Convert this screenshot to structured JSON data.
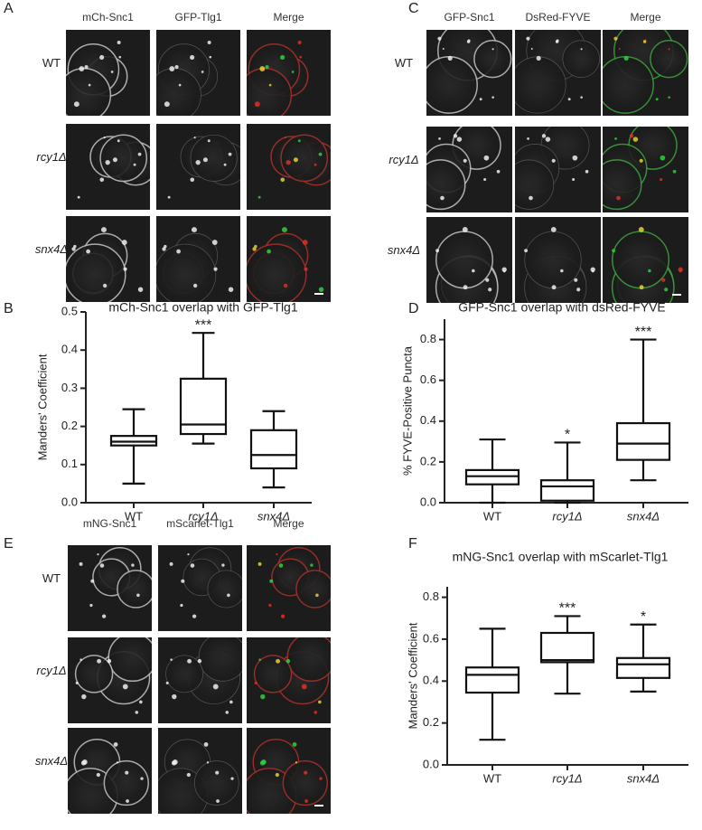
{
  "image_figures": [
    {
      "letter": "A",
      "columns": [
        "mCh-Snc1",
        "GFP-Tlg1",
        "Merge"
      ],
      "rows": [
        "WT",
        "rcy1Δ",
        "snx4Δ"
      ]
    },
    {
      "letter": "C",
      "columns": [
        "GFP-Snc1",
        "DsRed-FYVE",
        "Merge"
      ],
      "rows": [
        "WT",
        "rcy1Δ",
        "snx4Δ"
      ]
    },
    {
      "letter": "E",
      "columns": [
        "mNG-Snc1",
        "mScarlet-Tlg1",
        "Merge"
      ],
      "rows": [
        "WT",
        "rcy1Δ",
        "snx4Δ"
      ]
    }
  ],
  "chart_data": [
    {
      "type": "box",
      "letter": "B",
      "title": "mCh-Snc1 overlap with GFP-Tlg1",
      "y_label": "Manders' Coefficient",
      "categories": [
        "WT",
        "rcy1Δ",
        "snx4Δ"
      ],
      "min": [
        0.05,
        0.155,
        0.04
      ],
      "q1": [
        0.15,
        0.18,
        0.09
      ],
      "median": [
        0.16,
        0.205,
        0.125
      ],
      "q3": [
        0.175,
        0.325,
        0.19
      ],
      "max": [
        0.245,
        0.445,
        0.24
      ],
      "annotations": [
        null,
        "***",
        null
      ],
      "ylim": [
        0,
        0.5
      ],
      "yticks": [
        {
          "value": 0,
          "label": "0.0"
        },
        0.1,
        0.2,
        0.3,
        0.4,
        0.5
      ]
    },
    {
      "type": "box",
      "letter": "D",
      "title": "GFP-Snc1 overlap with dsRed-FYVE",
      "y_label": "% FYVE-Positive Puncta",
      "categories": [
        "WT",
        "rcy1Δ",
        "snx4Δ"
      ],
      "min": [
        0.0,
        0.0,
        0.11
      ],
      "q1": [
        0.09,
        0.01,
        0.21
      ],
      "median": [
        0.13,
        0.08,
        0.29
      ],
      "q3": [
        0.16,
        0.11,
        0.39
      ],
      "max": [
        0.31,
        0.295,
        0.8
      ],
      "annotations": [
        null,
        "*",
        "***"
      ],
      "ylim": [
        0,
        0.9
      ],
      "yticks": [
        {
          "value": 0,
          "label": "0.0"
        },
        0.2,
        0.4,
        0.6,
        0.8
      ]
    },
    {
      "type": "box",
      "letter": "F",
      "title": "mNG-Snc1 overlap with mScarlet-Tlg1",
      "y_label": "Manders' Coefficient",
      "categories": [
        "WT",
        "rcy1Δ",
        "snx4Δ"
      ],
      "min": [
        0.12,
        0.34,
        0.35
      ],
      "q1": [
        0.345,
        0.49,
        0.415
      ],
      "median": [
        0.43,
        0.5,
        0.48
      ],
      "q3": [
        0.465,
        0.63,
        0.51
      ],
      "max": [
        0.65,
        0.71,
        0.67
      ],
      "annotations": [
        null,
        "***",
        "*"
      ],
      "ylim": [
        0,
        0.85
      ],
      "yticks": [
        {
          "value": 0,
          "label": "0.0"
        },
        0.2,
        0.4,
        0.6,
        0.8
      ]
    }
  ]
}
